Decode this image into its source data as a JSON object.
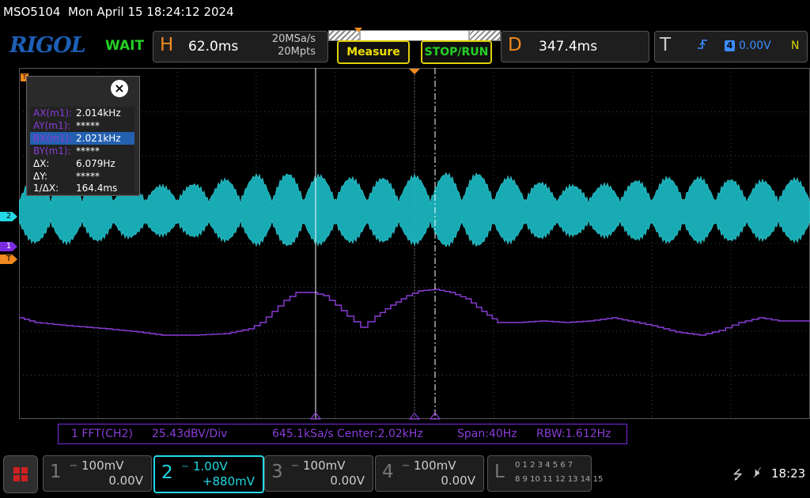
{
  "title_bar": {
    "model": "MSO5104",
    "datetime": "Mon April 15 18:24:12 2024"
  },
  "top_bar": {
    "logo": "RIGOL",
    "run_state": "WAIT",
    "horizontal": {
      "letter": "H",
      "timebase": "62.0ms",
      "sample_rate": "20MSa/s",
      "memory_depth": "20Mpts"
    },
    "measure_label": "Measure",
    "stop_run_label": "STOP/RUN",
    "delay": {
      "letter": "D",
      "value": "347.4ms"
    },
    "trigger": {
      "letter": "T",
      "edge_icon": "rising-edge-icon",
      "source": "4",
      "level": "0.00V",
      "mode": "N"
    }
  },
  "markers": {
    "ch2": "2",
    "ch1": "1",
    "trigger": "T"
  },
  "cursor_readout": {
    "close_label": "×",
    "rows": [
      {
        "label": "AX(m1):",
        "value": "2.014kHz"
      },
      {
        "label": "AY(m1):",
        "value": "*****"
      },
      {
        "label": "BX(m1):",
        "value": "2.021kHz"
      },
      {
        "label": "BY(m1):",
        "value": "*****"
      },
      {
        "label": "ΔX:",
        "value": "6.079Hz"
      },
      {
        "label": "ΔY:",
        "value": "*****"
      },
      {
        "label": "1/ΔX:",
        "value": "164.4ms"
      }
    ]
  },
  "fft_info": {
    "source": "1 FFT(CH2)",
    "scale": "25.43dBV/Div",
    "rate": "645.1kSa/s",
    "center": "Center:2.02kHz",
    "span": "Span:40Hz",
    "rbw": "RBW:1.612Hz"
  },
  "channels": [
    {
      "num": "1",
      "scale": "100mV",
      "offset": "0.00V",
      "active": false
    },
    {
      "num": "2",
      "scale": "1.00V",
      "offset": "+880mV",
      "active": true
    },
    {
      "num": "3",
      "scale": "100mV",
      "offset": "0.00V",
      "active": false
    },
    {
      "num": "4",
      "scale": "100mV",
      "offset": "0.00V",
      "active": false
    }
  ],
  "logic": {
    "letter": "L",
    "row1": "0 1 2 3  4 5 6 7",
    "row2": "8 9 10 11 12 13 14 15"
  },
  "status": {
    "usb_icon": "usb-icon",
    "speaker_icon": "speaker-muted-icon",
    "clock": "18:23"
  },
  "colors": {
    "ch1": "#7a2be0",
    "ch2": "#22d9e5",
    "trigger": "#f08a1e",
    "run_state": "#24d024",
    "logo": "#1d5fb5"
  }
}
